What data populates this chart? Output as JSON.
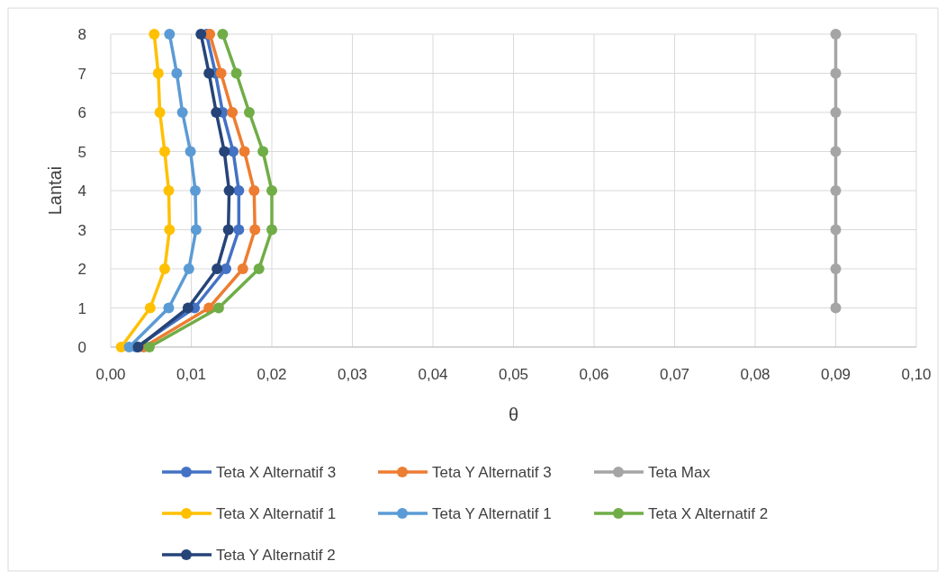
{
  "chart_data": {
    "type": "line",
    "xlabel": "θ",
    "ylabel": "Lantai",
    "xlim": [
      0,
      0.1
    ],
    "xticks": [
      {
        "value": 0,
        "label": "0,00"
      },
      {
        "value": 0.01,
        "label": "0,01"
      },
      {
        "value": 0.02,
        "label": "0,02"
      },
      {
        "value": 0.03,
        "label": "0,03"
      },
      {
        "value": 0.04,
        "label": "0,04"
      },
      {
        "value": 0.05,
        "label": "0,05"
      },
      {
        "value": 0.06,
        "label": "0,06"
      },
      {
        "value": 0.07,
        "label": "0,07"
      },
      {
        "value": 0.08,
        "label": "0,08"
      },
      {
        "value": 0.09,
        "label": "0,09"
      },
      {
        "value": 0.1,
        "label": "0,10"
      }
    ],
    "ylim": [
      0,
      8
    ],
    "yticks": [
      0,
      1,
      2,
      3,
      4,
      5,
      6,
      7,
      8
    ],
    "grid": true,
    "legend": "bottom",
    "marker": "circle",
    "series": [
      {
        "name": "Teta X Alternatif 3",
        "color": "#4472c4",
        "x": [
          0.0032,
          0.0104,
          0.0143,
          0.0159,
          0.0159,
          0.0152,
          0.0139,
          0.013,
          0.0119
        ],
        "values": [
          0,
          1,
          2,
          3,
          4,
          5,
          6,
          7,
          8
        ]
      },
      {
        "name": "Teta Y Alternatif 3",
        "color": "#ed7d31",
        "x": [
          0.0041,
          0.0122,
          0.0164,
          0.0179,
          0.0178,
          0.0166,
          0.0151,
          0.0137,
          0.0123
        ],
        "values": [
          0,
          1,
          2,
          3,
          4,
          5,
          6,
          7,
          8
        ]
      },
      {
        "name": "Teta Max",
        "color": "#a5a5a5",
        "x": [
          0.09,
          0.09,
          0.09,
          0.09,
          0.09,
          0.09,
          0.09,
          0.09
        ],
        "values": [
          1,
          2,
          3,
          4,
          5,
          6,
          7,
          8
        ]
      },
      {
        "name": "Teta X Alternatif 1",
        "color": "#ffc000",
        "x": [
          0.0013,
          0.0049,
          0.0067,
          0.0073,
          0.0072,
          0.0067,
          0.0061,
          0.0059,
          0.0054
        ],
        "values": [
          0,
          1,
          2,
          3,
          4,
          5,
          6,
          7,
          8
        ]
      },
      {
        "name": "Teta Y Alternatif 1",
        "color": "#5b9bd5",
        "x": [
          0.0023,
          0.0072,
          0.0097,
          0.0106,
          0.0105,
          0.0099,
          0.0089,
          0.0082,
          0.0073
        ],
        "values": [
          0,
          1,
          2,
          3,
          4,
          5,
          6,
          7,
          8
        ]
      },
      {
        "name": "Teta X Alternatif 2",
        "color": "#70ad47",
        "x": [
          0.0048,
          0.0134,
          0.0184,
          0.02,
          0.02,
          0.0189,
          0.0172,
          0.0156,
          0.0139
        ],
        "values": [
          0,
          1,
          2,
          3,
          4,
          5,
          6,
          7,
          8
        ]
      },
      {
        "name": "Teta Y Alternatif 2",
        "color": "#264478",
        "x": [
          0.0034,
          0.0096,
          0.0132,
          0.0146,
          0.0147,
          0.0141,
          0.0131,
          0.0122,
          0.0112
        ],
        "values": [
          0,
          1,
          2,
          3,
          4,
          5,
          6,
          7,
          8
        ]
      }
    ]
  }
}
